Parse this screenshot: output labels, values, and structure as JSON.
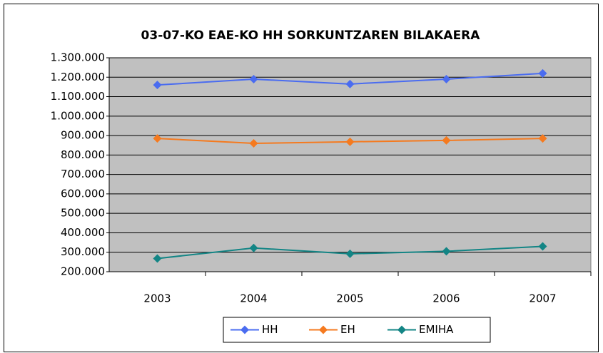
{
  "chart_data": {
    "type": "line",
    "title": "03-07-KO EAE-KO HH SORKUNTZAREN BILAKAERA",
    "categories": [
      "2003",
      "2004",
      "2005",
      "2006",
      "2007"
    ],
    "series": [
      {
        "name": "HH",
        "color": "#4a6cf0",
        "values": [
          1160000,
          1190000,
          1165000,
          1190000,
          1220000
        ]
      },
      {
        "name": "EH",
        "color": "#f57a1f",
        "values": [
          885000,
          860000,
          868000,
          875000,
          885000
        ]
      },
      {
        "name": "EMIHA",
        "color": "#138585",
        "values": [
          268000,
          322000,
          292000,
          305000,
          330000
        ]
      }
    ],
    "ylim": [
      200000,
      1300000
    ],
    "yticks": [
      {
        "value": 200000,
        "label": "200.000"
      },
      {
        "value": 300000,
        "label": "300.000"
      },
      {
        "value": 400000,
        "label": "400.000"
      },
      {
        "value": 500000,
        "label": "500.000"
      },
      {
        "value": 600000,
        "label": "600.000"
      },
      {
        "value": 700000,
        "label": "700.000"
      },
      {
        "value": 800000,
        "label": "800.000"
      },
      {
        "value": 900000,
        "label": "900.000"
      },
      {
        "value": 1000000,
        "label": "1.000.000"
      },
      {
        "value": 1100000,
        "label": "1.100.000"
      },
      {
        "value": 1200000,
        "label": "1.200.000"
      },
      {
        "value": 1300000,
        "label": "1.300.000"
      }
    ],
    "grid": true,
    "legend": "bottom",
    "plot_background": "#c0c0c0"
  }
}
